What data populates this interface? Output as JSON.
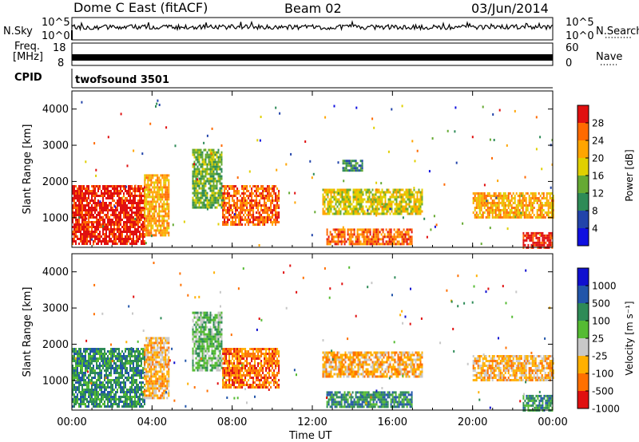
{
  "header": {
    "title": "Dome C East (fitACF)",
    "beam": "Beam 02",
    "date": "03/Jun/2014"
  },
  "strips": {
    "nsky_label": "N.Sky",
    "nsky_ticks": [
      "10^5",
      "10^0"
    ],
    "nsearch_label": "N.Search",
    "nsearch_ticks": [
      "10^5",
      "10^0"
    ],
    "freq_label_1": "Freq.",
    "freq_label_2": "[MHz]",
    "freq_ticks": [
      "18",
      "8"
    ],
    "nave_label": "Nave",
    "nave_ticks": [
      "60",
      "0"
    ],
    "cpid_label": "CPID",
    "cpid_value": "twofsound 3501"
  },
  "chart_data": [
    {
      "type": "heatmap",
      "ylabel": "Slant Range [km]",
      "xlabel": "",
      "x_ticks": [
        "00:00",
        "04:00",
        "08:00",
        "12:00",
        "16:00",
        "20:00",
        "00:00"
      ],
      "y_ticks": [
        "1000",
        "2000",
        "3000",
        "4000"
      ],
      "ylim": [
        180,
        4500
      ],
      "colorbar": {
        "label": "Power [dB]",
        "ticks": [
          "4",
          "8",
          "12",
          "16",
          "20",
          "24",
          "28"
        ],
        "range": [
          0,
          32
        ],
        "colors": [
          "#1010e0",
          "#2244aa",
          "#2e8b57",
          "#66aa33",
          "#e0d000",
          "#ffa500",
          "#ff6a00",
          "#e01010"
        ]
      },
      "echo_regions": [
        {
          "t": [
            0.0,
            3.6
          ],
          "r": [
            300,
            1900
          ],
          "level": 28
        },
        {
          "t": [
            3.6,
            4.8
          ],
          "r": [
            500,
            2200
          ],
          "level": 22
        },
        {
          "t": [
            7.5,
            10.3
          ],
          "r": [
            800,
            1900
          ],
          "level": 26
        },
        {
          "t": [
            6.0,
            7.5
          ],
          "r": [
            1300,
            2900
          ],
          "level": 14
        },
        {
          "t": [
            12.5,
            17.5
          ],
          "r": [
            1100,
            1800
          ],
          "level": 18
        },
        {
          "t": [
            12.7,
            17.0
          ],
          "r": [
            250,
            700
          ],
          "level": 24
        },
        {
          "t": [
            20.0,
            24.0
          ],
          "r": [
            1000,
            1700
          ],
          "level": 20
        },
        {
          "t": [
            22.5,
            24.0
          ],
          "r": [
            200,
            600
          ],
          "level": 28
        },
        {
          "t": [
            13.5,
            14.5
          ],
          "r": [
            2300,
            2600
          ],
          "level": 8
        }
      ]
    },
    {
      "type": "heatmap",
      "ylabel": "Slant Range [km]",
      "xlabel": "Time UT",
      "x_ticks": [
        "00:00",
        "04:00",
        "08:00",
        "12:00",
        "16:00",
        "20:00",
        "00:00"
      ],
      "y_ticks": [
        "1000",
        "2000",
        "3000",
        "4000"
      ],
      "ylim": [
        180,
        4500
      ],
      "colorbar": {
        "label": "Velocity [m s⁻¹]",
        "ticks": [
          "1000",
          "500",
          "100",
          "25",
          "-25",
          "-100",
          "-500",
          "-1000"
        ],
        "colors": [
          "#1010d0",
          "#2255aa",
          "#2e8b57",
          "#55bb33",
          "#c8c8c8",
          "#ffb000",
          "#ff7000",
          "#e01010"
        ]
      },
      "echo_regions": [
        {
          "t": [
            0.0,
            3.6
          ],
          "r": [
            300,
            1900
          ],
          "level": 100
        },
        {
          "t": [
            3.6,
            4.8
          ],
          "r": [
            500,
            2200
          ],
          "level": -100
        },
        {
          "t": [
            7.5,
            10.3
          ],
          "r": [
            800,
            1900
          ],
          "level": -500
        },
        {
          "t": [
            6.0,
            7.5
          ],
          "r": [
            1300,
            2900
          ],
          "level": 25
        },
        {
          "t": [
            12.5,
            17.5
          ],
          "r": [
            1100,
            1800
          ],
          "level": -100
        },
        {
          "t": [
            12.7,
            17.0
          ],
          "r": [
            250,
            700
          ],
          "level": 100
        },
        {
          "t": [
            20.0,
            24.0
          ],
          "r": [
            1000,
            1700
          ],
          "level": -100
        },
        {
          "t": [
            22.5,
            24.0
          ],
          "r": [
            200,
            600
          ],
          "level": 100
        }
      ]
    }
  ]
}
